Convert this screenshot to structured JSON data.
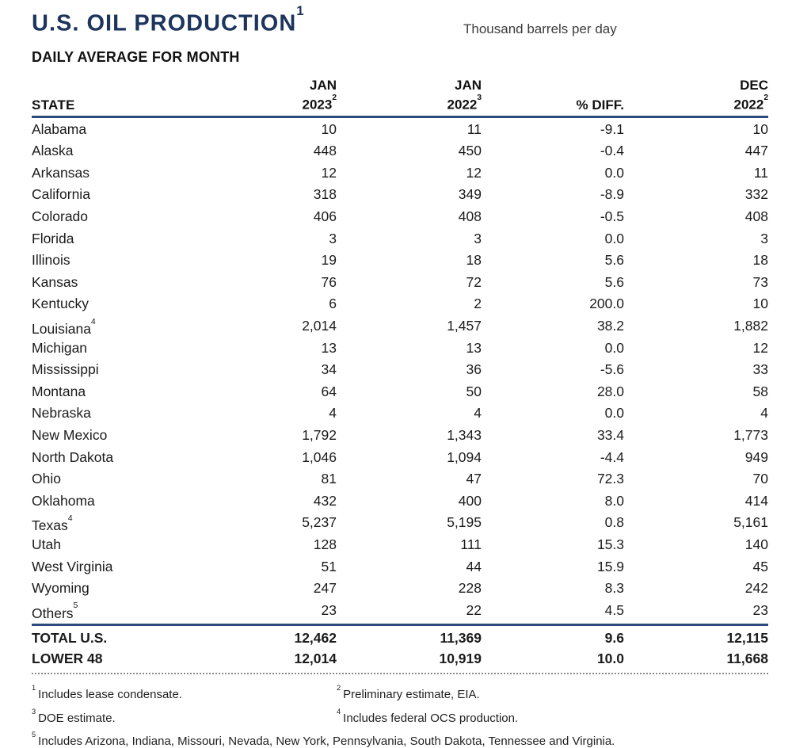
{
  "header": {
    "title": "U.S. OIL PRODUCTION",
    "title_sup": "1",
    "units": "Thousand barrels per day",
    "subtitle": "DAILY AVERAGE FOR MONTH"
  },
  "colors": {
    "title_navy": "#1d345c",
    "rule_navy": "#2d4b7c",
    "body_text": "#1b1b1b",
    "dotted_gray": "#8b8b8b"
  },
  "table": {
    "columns": {
      "state": "STATE",
      "col1_line1": "JAN",
      "col1_line2": "2023",
      "col1_sup": "2",
      "col2_line1": "JAN",
      "col2_line2": "2022",
      "col2_sup": "3",
      "col3": "% DIFF.",
      "col4_line1": "DEC",
      "col4_line2": "2022",
      "col4_sup": "2"
    },
    "rows": [
      {
        "state": "Alabama",
        "jan2023": "10",
        "jan2022": "11",
        "pct_diff": "-9.1",
        "dec2022": "10"
      },
      {
        "state": "Alaska",
        "jan2023": "448",
        "jan2022": "450",
        "pct_diff": "-0.4",
        "dec2022": "447"
      },
      {
        "state": "Arkansas",
        "jan2023": "12",
        "jan2022": "12",
        "pct_diff": "0.0",
        "dec2022": "11"
      },
      {
        "state": "California",
        "jan2023": "318",
        "jan2022": "349",
        "pct_diff": "-8.9",
        "dec2022": "332"
      },
      {
        "state": "Colorado",
        "jan2023": "406",
        "jan2022": "408",
        "pct_diff": "-0.5",
        "dec2022": "408"
      },
      {
        "state": "Florida",
        "jan2023": "3",
        "jan2022": "3",
        "pct_diff": "0.0",
        "dec2022": "3"
      },
      {
        "state": "Illinois",
        "jan2023": "19",
        "jan2022": "18",
        "pct_diff": "5.6",
        "dec2022": "18"
      },
      {
        "state": "Kansas",
        "jan2023": "76",
        "jan2022": "72",
        "pct_diff": "5.6",
        "dec2022": "73"
      },
      {
        "state": "Kentucky",
        "jan2023": "6",
        "jan2022": "2",
        "pct_diff": "200.0",
        "dec2022": "10"
      },
      {
        "state": "Louisiana",
        "sup": "4",
        "jan2023": "2,014",
        "jan2022": "1,457",
        "pct_diff": "38.2",
        "dec2022": "1,882"
      },
      {
        "state": "Michigan",
        "jan2023": "13",
        "jan2022": "13",
        "pct_diff": "0.0",
        "dec2022": "12"
      },
      {
        "state": "Mississippi",
        "jan2023": "34",
        "jan2022": "36",
        "pct_diff": "-5.6",
        "dec2022": "33"
      },
      {
        "state": "Montana",
        "jan2023": "64",
        "jan2022": "50",
        "pct_diff": "28.0",
        "dec2022": "58"
      },
      {
        "state": "Nebraska",
        "jan2023": "4",
        "jan2022": "4",
        "pct_diff": "0.0",
        "dec2022": "4"
      },
      {
        "state": "New Mexico",
        "jan2023": "1,792",
        "jan2022": "1,343",
        "pct_diff": "33.4",
        "dec2022": "1,773"
      },
      {
        "state": "North Dakota",
        "jan2023": "1,046",
        "jan2022": "1,094",
        "pct_diff": "-4.4",
        "dec2022": "949"
      },
      {
        "state": "Ohio",
        "jan2023": "81",
        "jan2022": "47",
        "pct_diff": "72.3",
        "dec2022": "70"
      },
      {
        "state": "Oklahoma",
        "jan2023": "432",
        "jan2022": "400",
        "pct_diff": "8.0",
        "dec2022": "414"
      },
      {
        "state": "Texas",
        "sup": "4",
        "jan2023": "5,237",
        "jan2022": "5,195",
        "pct_diff": "0.8",
        "dec2022": "5,161"
      },
      {
        "state": "Utah",
        "jan2023": "128",
        "jan2022": "111",
        "pct_diff": "15.3",
        "dec2022": "140"
      },
      {
        "state": "West Virginia",
        "jan2023": "51",
        "jan2022": "44",
        "pct_diff": "15.9",
        "dec2022": "45"
      },
      {
        "state": "Wyoming",
        "jan2023": "247",
        "jan2022": "228",
        "pct_diff": "8.3",
        "dec2022": "242"
      },
      {
        "state": "Others",
        "sup": "5",
        "jan2023": "23",
        "jan2022": "22",
        "pct_diff": "4.5",
        "dec2022": "23"
      }
    ],
    "totals": [
      {
        "state": "TOTAL U.S.",
        "jan2023": "12,462",
        "jan2022": "11,369",
        "pct_diff": "9.6",
        "dec2022": "12,115"
      },
      {
        "state": "LOWER 48",
        "jan2023": "12,014",
        "jan2022": "10,919",
        "pct_diff": "10.0",
        "dec2022": "11,668"
      }
    ]
  },
  "footnotes": [
    {
      "sup": "1",
      "text": "Includes lease condensate."
    },
    {
      "sup": "2",
      "text": "Preliminary estimate, EIA."
    },
    {
      "sup": "3",
      "text": "DOE estimate."
    },
    {
      "sup": "4",
      "text": "Includes federal OCS production."
    },
    {
      "sup": "5",
      "text": "Includes Arizona, Indiana, Missouri, Nevada, New York, Pennsylvania, South Dakota, Tennessee and Virginia."
    }
  ]
}
